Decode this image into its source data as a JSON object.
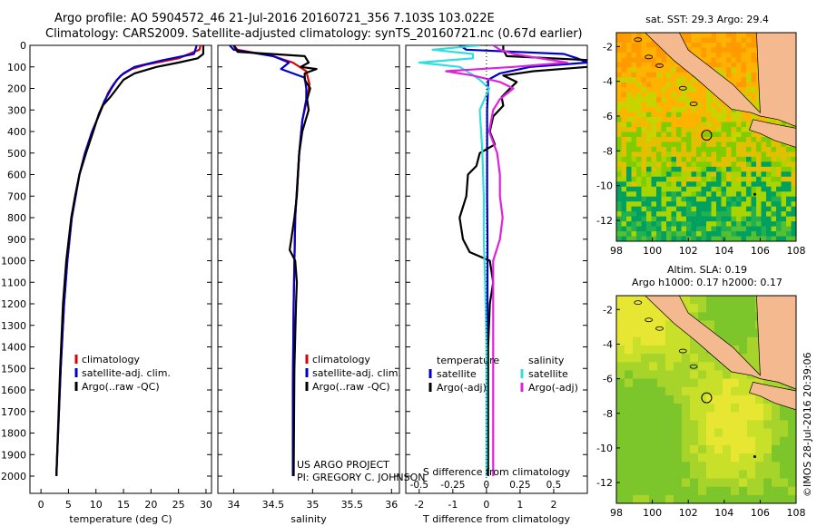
{
  "header": {
    "line1": "Argo profile: AO 5904572_46 21-Jul-2016 20160721_356 7.103S 103.022E",
    "line2": "Climatology: CARS2009. Satellite-adjusted climatology: synTS_20160721.nc (0.67d earlier)"
  },
  "colors": {
    "climatology": "#e00000",
    "satellite": "#0000cc",
    "argo": "#000000",
    "salinity_satellite": "#33dddd",
    "salinity_argo": "#dd22dd",
    "land": "#f4b98e"
  },
  "chart_data": [
    {
      "id": "temperature",
      "type": "line",
      "xlabel": "temperature (deg C)",
      "ylabel": "",
      "xlim": [
        -2,
        31
      ],
      "ylim": [
        2080,
        0
      ],
      "xticks": [
        "0",
        "5",
        "10",
        "15",
        "20",
        "25",
        "30"
      ],
      "xtick_values": [
        0,
        5,
        10,
        15,
        20,
        25,
        30
      ],
      "yticks": [
        "0",
        "100",
        "200",
        "300",
        "400",
        "500",
        "600",
        "700",
        "800",
        "900",
        "1000",
        "1100",
        "1200",
        "1300",
        "1400",
        "1500",
        "1600",
        "1700",
        "1800",
        "1900",
        "2000"
      ],
      "ytick_values": [
        0,
        100,
        200,
        300,
        400,
        500,
        600,
        700,
        800,
        900,
        1000,
        1100,
        1200,
        1300,
        1400,
        1500,
        1600,
        1700,
        1800,
        1900,
        2000
      ],
      "legend": [
        "climatology",
        "satellite-adj. clim.",
        "Argo(..raw -QC)"
      ],
      "series": [
        {
          "name": "climatology",
          "depth": [
            0,
            20,
            60,
            90,
            110,
            140,
            180,
            220,
            260,
            320,
            400,
            500,
            600,
            800,
            1000,
            1200,
            1500,
            2000
          ],
          "values": [
            29,
            28.8,
            25,
            19,
            16.5,
            14.5,
            13.2,
            12.2,
            11.6,
            10.6,
            9.3,
            8,
            7,
            5.6,
            4.8,
            4.2,
            3.6,
            2.8
          ]
        },
        {
          "name": "satellite-adj. clim.",
          "depth": [
            0,
            10,
            40,
            70,
            100,
            130,
            160,
            200,
            260,
            320,
            400,
            500,
            600,
            800,
            1000,
            1200,
            1500,
            2000
          ],
          "values": [
            28.3,
            28.2,
            27.8,
            22,
            17,
            15,
            13.8,
            12.8,
            11.5,
            10.6,
            9.3,
            8,
            7,
            5.6,
            4.8,
            4.2,
            3.6,
            2.8
          ]
        },
        {
          "name": "Argo(..raw -QC)",
          "depth": [
            0,
            40,
            60,
            80,
            100,
            130,
            160,
            200,
            240,
            280,
            320,
            400,
            500,
            600,
            700,
            800,
            1000,
            1200,
            1500,
            2000
          ],
          "values": [
            29.5,
            29.5,
            28.5,
            25,
            21,
            17,
            15,
            13.8,
            12.6,
            11.2,
            10.5,
            9.5,
            8.2,
            7,
            6.2,
            5.5,
            4.6,
            4,
            3.5,
            2.8
          ]
        }
      ]
    },
    {
      "id": "salinity",
      "type": "line",
      "xlabel": "salinity",
      "xlim": [
        33.8,
        36.1
      ],
      "ylim": [
        2080,
        0
      ],
      "xticks": [
        "34",
        "34.5",
        "35",
        "35.5",
        "36"
      ],
      "xtick_values": [
        34,
        34.5,
        35,
        35.5,
        36
      ],
      "legend": [
        "climatology",
        "satellite-adj. clim.",
        "Argo(..raw -QC)"
      ],
      "series": [
        {
          "name": "climatology",
          "depth": [
            0,
            20,
            50,
            80,
            120,
            180,
            250,
            350,
            500,
            800,
            1200,
            1600,
            2000
          ],
          "values": [
            34.0,
            34.05,
            34.5,
            34.75,
            34.92,
            34.96,
            34.93,
            34.87,
            34.83,
            34.78,
            34.76,
            34.75,
            34.75
          ]
        },
        {
          "name": "satellite-adj. clim.",
          "depth": [
            0,
            20,
            50,
            80,
            110,
            130,
            150,
            200,
            250,
            350,
            500,
            800,
            1200,
            1600,
            2000
          ],
          "values": [
            33.95,
            34.0,
            34.5,
            34.7,
            34.6,
            34.75,
            34.9,
            34.92,
            34.92,
            34.87,
            34.83,
            34.78,
            34.76,
            34.75,
            34.75
          ]
        },
        {
          "name": "Argo(..raw -QC)",
          "depth": [
            0,
            30,
            50,
            80,
            100,
            110,
            130,
            160,
            200,
            250,
            300,
            400,
            500,
            700,
            800,
            900,
            950,
            1000,
            1100,
            1200,
            1500,
            2000
          ],
          "values": [
            34.0,
            34.05,
            34.9,
            34.95,
            34.85,
            35.05,
            34.9,
            34.9,
            34.97,
            34.93,
            34.95,
            34.87,
            34.83,
            34.8,
            34.77,
            34.73,
            34.71,
            34.78,
            34.8,
            34.79,
            34.77,
            34.76
          ]
        }
      ],
      "annotations": [
        "US ARGO PROJECT",
        "PI: GREGORY C. JOHNSON"
      ]
    },
    {
      "id": "difference",
      "type": "line",
      "xlabel": "T difference from climatology",
      "xlabel_top": "S difference from climatology",
      "xlim": [
        -2.4,
        3
      ],
      "ylim": [
        2080,
        0
      ],
      "xticks": [
        "-2",
        "-1",
        "0",
        "1",
        "2"
      ],
      "xtick_values": [
        -2,
        -1,
        0,
        1,
        2
      ],
      "sticks": [
        "-0.5",
        "-0.25",
        "0",
        "0.25",
        "0.5"
      ],
      "stick_values": [
        -0.5,
        -0.25,
        0,
        0.25,
        0.5
      ],
      "legend_left_title": "temperature",
      "legend_right_title": "salinity",
      "legend_left": [
        "satellite",
        "Argo(-adj)"
      ],
      "legend_right": [
        "satellite",
        "Argo(-adj)"
      ],
      "series": [
        {
          "name": "T satellite",
          "depth": [
            0,
            20,
            40,
            60,
            80,
            100,
            130,
            160,
            200,
            300,
            400,
            500,
            700,
            900,
            1100,
            1400,
            1700,
            2000
          ],
          "values": [
            -0.8,
            -0.6,
            2.3,
            2.7,
            3.0,
            1.3,
            0.4,
            0.05,
            0.05,
            0.02,
            0.02,
            0.02,
            0.02,
            0.03,
            0.03,
            0.03,
            0.03,
            0.03
          ]
        },
        {
          "name": "T Argo(-adj)",
          "depth": [
            0,
            20,
            50,
            70,
            100,
            120,
            140,
            170,
            200,
            240,
            280,
            330,
            400,
            460,
            500,
            560,
            600,
            700,
            800,
            900,
            960,
            1000,
            1100,
            1200,
            1400,
            1700,
            2000
          ],
          "values": [
            0.5,
            0.5,
            0.6,
            3.2,
            3.0,
            1.4,
            0.5,
            0.9,
            0.7,
            0.45,
            0.5,
            0.2,
            0.1,
            0.25,
            -0.2,
            -0.3,
            -0.55,
            -0.6,
            -0.8,
            -0.7,
            -0.5,
            0.1,
            0.2,
            0.1,
            0.05,
            0.05,
            0.05
          ]
        },
        {
          "name": "S satellite",
          "depth": [
            0,
            20,
            40,
            60,
            80,
            100,
            130,
            160,
            200,
            300,
            400,
            500,
            700,
            900,
            1100,
            1400,
            1700,
            2000
          ],
          "values": [
            -0.05,
            -0.4,
            -0.1,
            -0.1,
            -0.5,
            -0.2,
            -0.12,
            -0.05,
            0.02,
            -0.05,
            -0.04,
            -0.03,
            -0.02,
            -0.02,
            -0.01,
            0,
            0,
            0
          ]
        },
        {
          "name": "S Argo(-adj)",
          "depth": [
            0,
            20,
            40,
            60,
            80,
            100,
            120,
            140,
            170,
            200,
            250,
            300,
            400,
            500,
            600,
            700,
            800,
            900,
            1000,
            1200,
            1500,
            2000
          ],
          "values": [
            0.05,
            0.1,
            0.2,
            0.4,
            0.6,
            0.2,
            -0.3,
            -0.1,
            0.1,
            0.2,
            0.1,
            0.05,
            0.02,
            0.08,
            0.1,
            0.1,
            0.12,
            0.1,
            0.05,
            0.05,
            0.05,
            0.05
          ]
        }
      ]
    },
    {
      "id": "map_sst",
      "type": "heatmap",
      "title": "sat. SST: 29.3 Argo: 29.4",
      "xlim": [
        98,
        108
      ],
      "ylim": [
        -13.2,
        -1.2
      ],
      "xticks": [
        "98",
        "100",
        "102",
        "104",
        "106",
        "108"
      ],
      "xtick_values": [
        98,
        100,
        102,
        104,
        106,
        108
      ],
      "yticks": [
        "-2",
        "-4",
        "-6",
        "-8",
        "-10",
        "-12"
      ],
      "ytick_values": [
        -2,
        -4,
        -6,
        -8,
        -10,
        -12
      ],
      "profile": {
        "lon": 103.022,
        "lat": -7.103
      }
    },
    {
      "id": "map_sla",
      "type": "heatmap",
      "title1": "Altim. SLA: 0.19",
      "title2": "Argo h1000: 0.17 h2000: 0.17",
      "xlim": [
        98,
        108
      ],
      "ylim": [
        -13.2,
        -1.2
      ],
      "xticks": [
        "98",
        "100",
        "102",
        "104",
        "106",
        "108"
      ],
      "xtick_values": [
        98,
        100,
        102,
        104,
        106,
        108
      ],
      "yticks": [
        "-2",
        "-4",
        "-6",
        "-8",
        "-10",
        "-12"
      ],
      "ytick_values": [
        -2,
        -4,
        -6,
        -8,
        -10,
        -12
      ],
      "profile": {
        "lon": 103.022,
        "lat": -7.103
      }
    }
  ],
  "credit": "©IMOS 28-Jul-2016 20:39:06"
}
